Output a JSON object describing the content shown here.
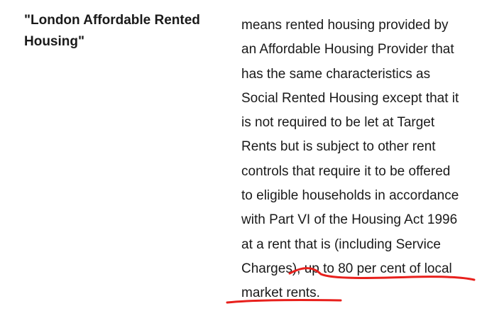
{
  "definition_entry": {
    "term": "\"London Affordable Rented Housing\"",
    "definition_lines": [
      "means rented housing provided by",
      "an Affordable Housing Provider that",
      "has the same characteristics as",
      "Social Rented Housing except that it",
      "is not required to be let at Target",
      "Rents but is subject to other rent",
      "controls that require it to be offered",
      "to eligible households in accordance",
      "with Part VI of the Housing Act 1996",
      "at a rent that is (including Service",
      "Charges), up to 80 per cent of local",
      "market rents."
    ]
  },
  "annotation": {
    "color": "#e8201c"
  }
}
